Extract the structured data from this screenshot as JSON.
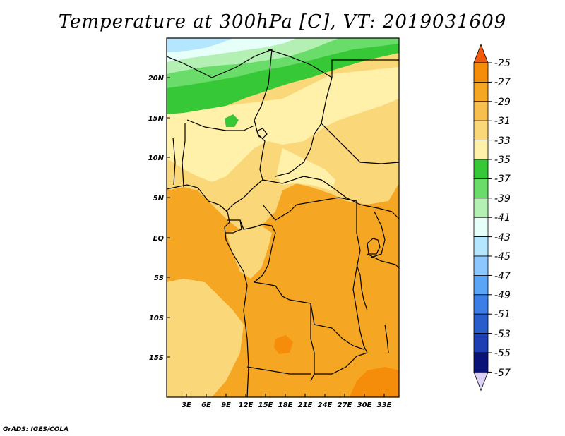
{
  "title": "Temperature at 300hPa [C], VT: 2019031609",
  "footer": "GrADS: IGES/COLA",
  "map": {
    "lat_labels": [
      "20N",
      "15N",
      "10N",
      "5N",
      "EQ",
      "5S",
      "10S",
      "15S"
    ],
    "lon_labels": [
      "3E",
      "6E",
      "9E",
      "12E",
      "15E",
      "18E",
      "21E",
      "24E",
      "27E",
      "30E",
      "33E"
    ]
  },
  "colorbar": {
    "labels": [
      "-25",
      "-27",
      "-29",
      "-31",
      "-33",
      "-35",
      "-37",
      "-39",
      "-41",
      "-43",
      "-45",
      "-47",
      "-49",
      "-51",
      "-53",
      "-55",
      "-57"
    ],
    "colors": [
      "#f05a0a",
      "#f58c0a",
      "#f5a623",
      "#f8bf4f",
      "#fad87a",
      "#fff0aa",
      "#37c837",
      "#69dc69",
      "#b4f0b4",
      "#e6fff8",
      "#b4e6ff",
      "#8cc8ff",
      "#5aa5f5",
      "#3a7ee6",
      "#2a5dcc",
      "#1e3fb4",
      "#0a1478",
      "#dcd2f5"
    ]
  },
  "colors": {
    "t_25_27": "#f58c0a",
    "t_27_29": "#f5a623",
    "t_29_31": "#f8bf4f",
    "t_31_33": "#fad87a",
    "t_33_35": "#fff0aa",
    "t_35_37": "#37c837",
    "t_37_39": "#69dc69",
    "t_39_41": "#b4f0b4",
    "t_41_43": "#e6fff8",
    "t_43_45": "#b4e6ff",
    "t_45_47": "#8cc8ff"
  }
}
